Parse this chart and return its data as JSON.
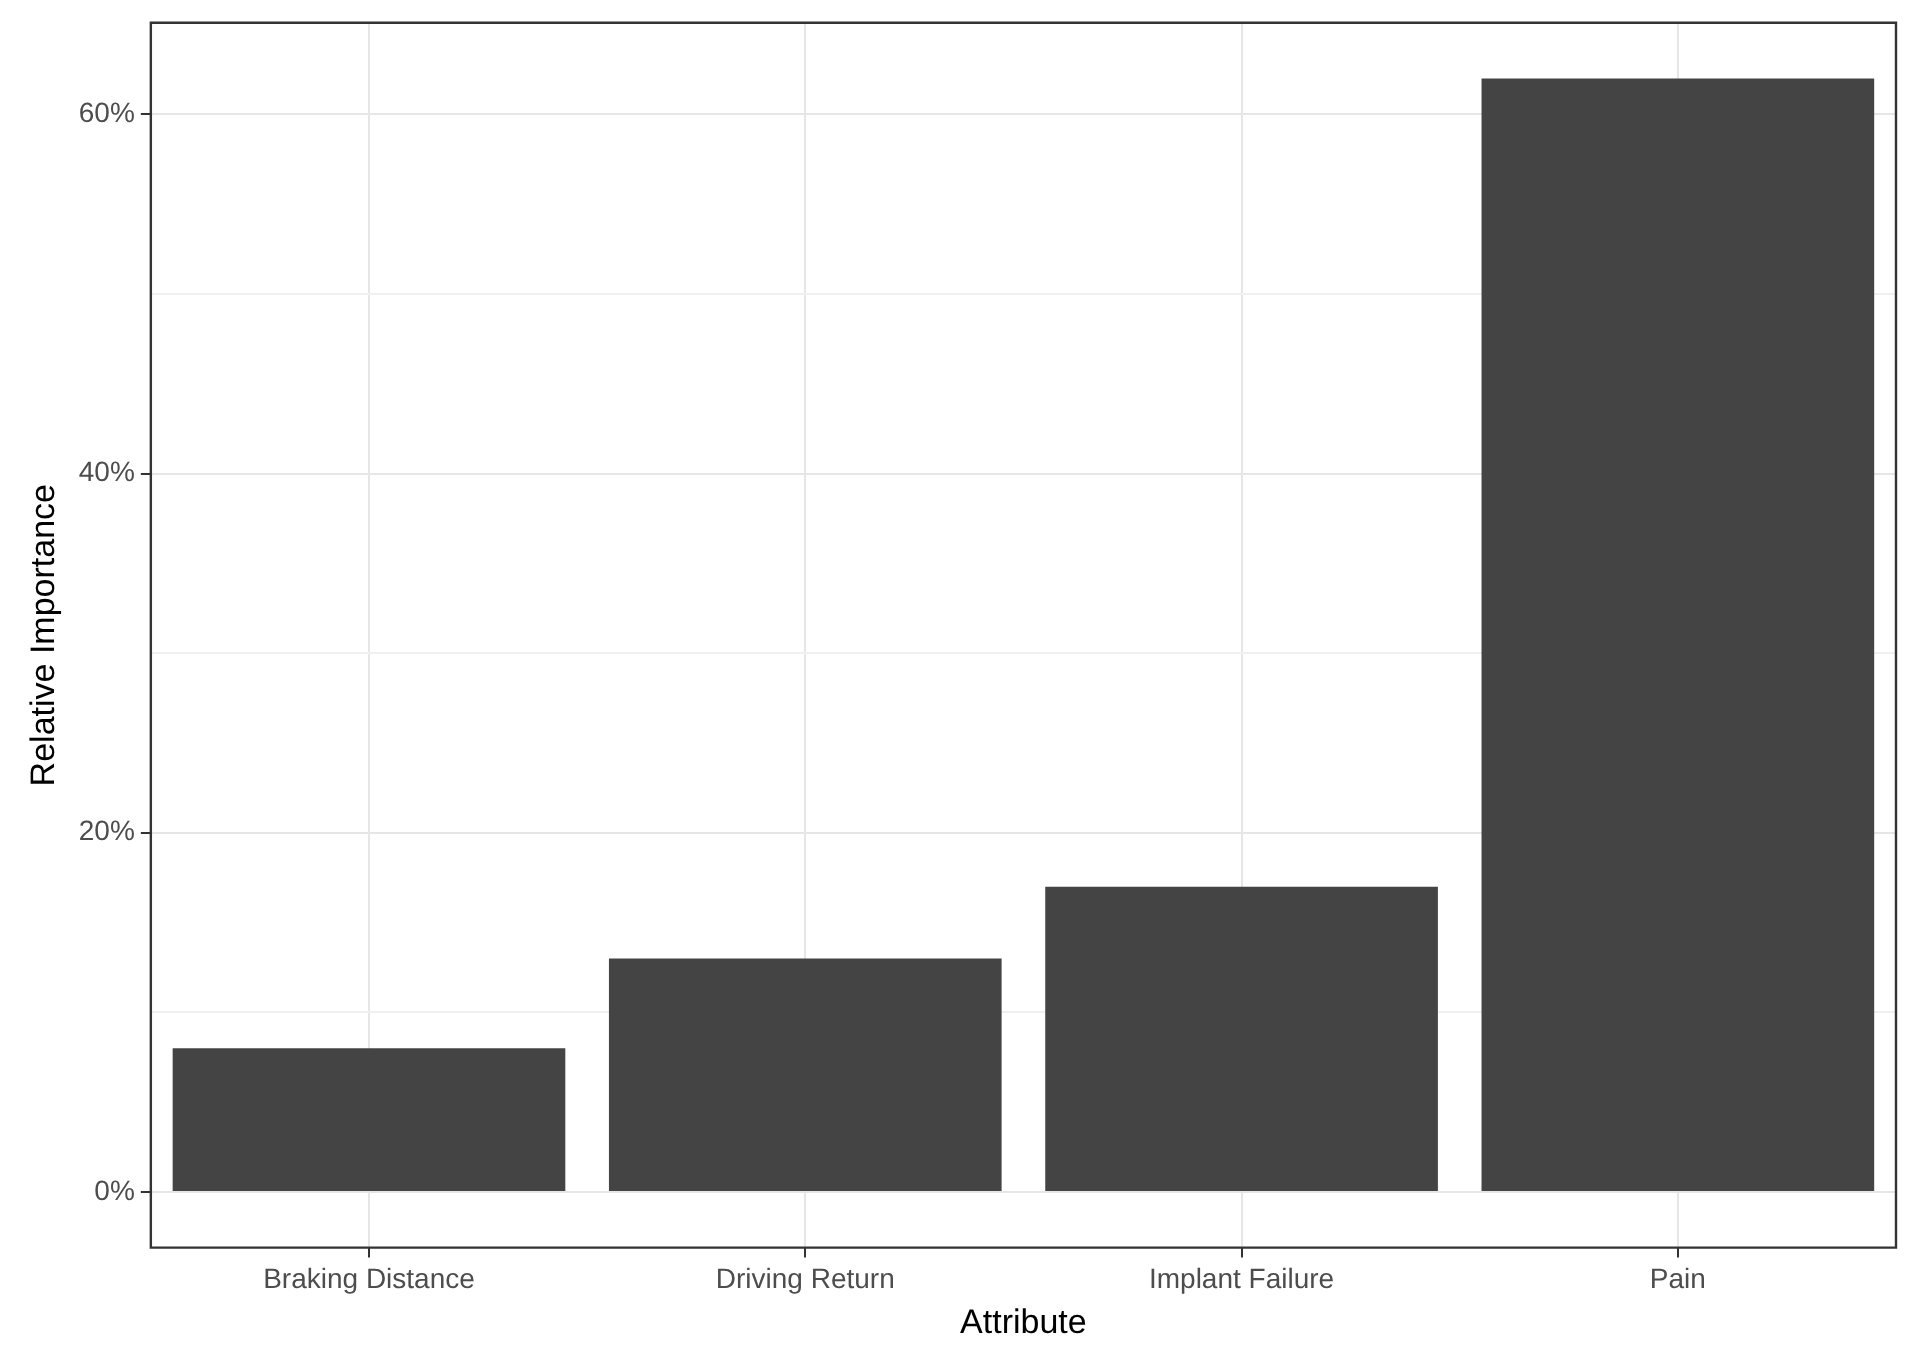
{
  "chart_data": {
    "type": "bar",
    "xlabel": "Attribute",
    "ylabel": "Relative Importance",
    "categories": [
      "Braking Distance",
      "Driving Return",
      "Implant Failure",
      "Pain"
    ],
    "values": [
      8,
      13,
      17,
      62
    ],
    "color": "#444444",
    "ylim": [
      -3.1,
      65.1
    ],
    "yticks": [
      {
        "value": 0,
        "label": "0%"
      },
      {
        "value": 10,
        "label": null
      },
      {
        "value": 20,
        "label": "20%"
      },
      {
        "value": 30,
        "label": null
      },
      {
        "value": 40,
        "label": "40%"
      },
      {
        "value": 50,
        "label": null
      },
      {
        "value": 60,
        "label": "60%"
      }
    ],
    "grid": true
  }
}
